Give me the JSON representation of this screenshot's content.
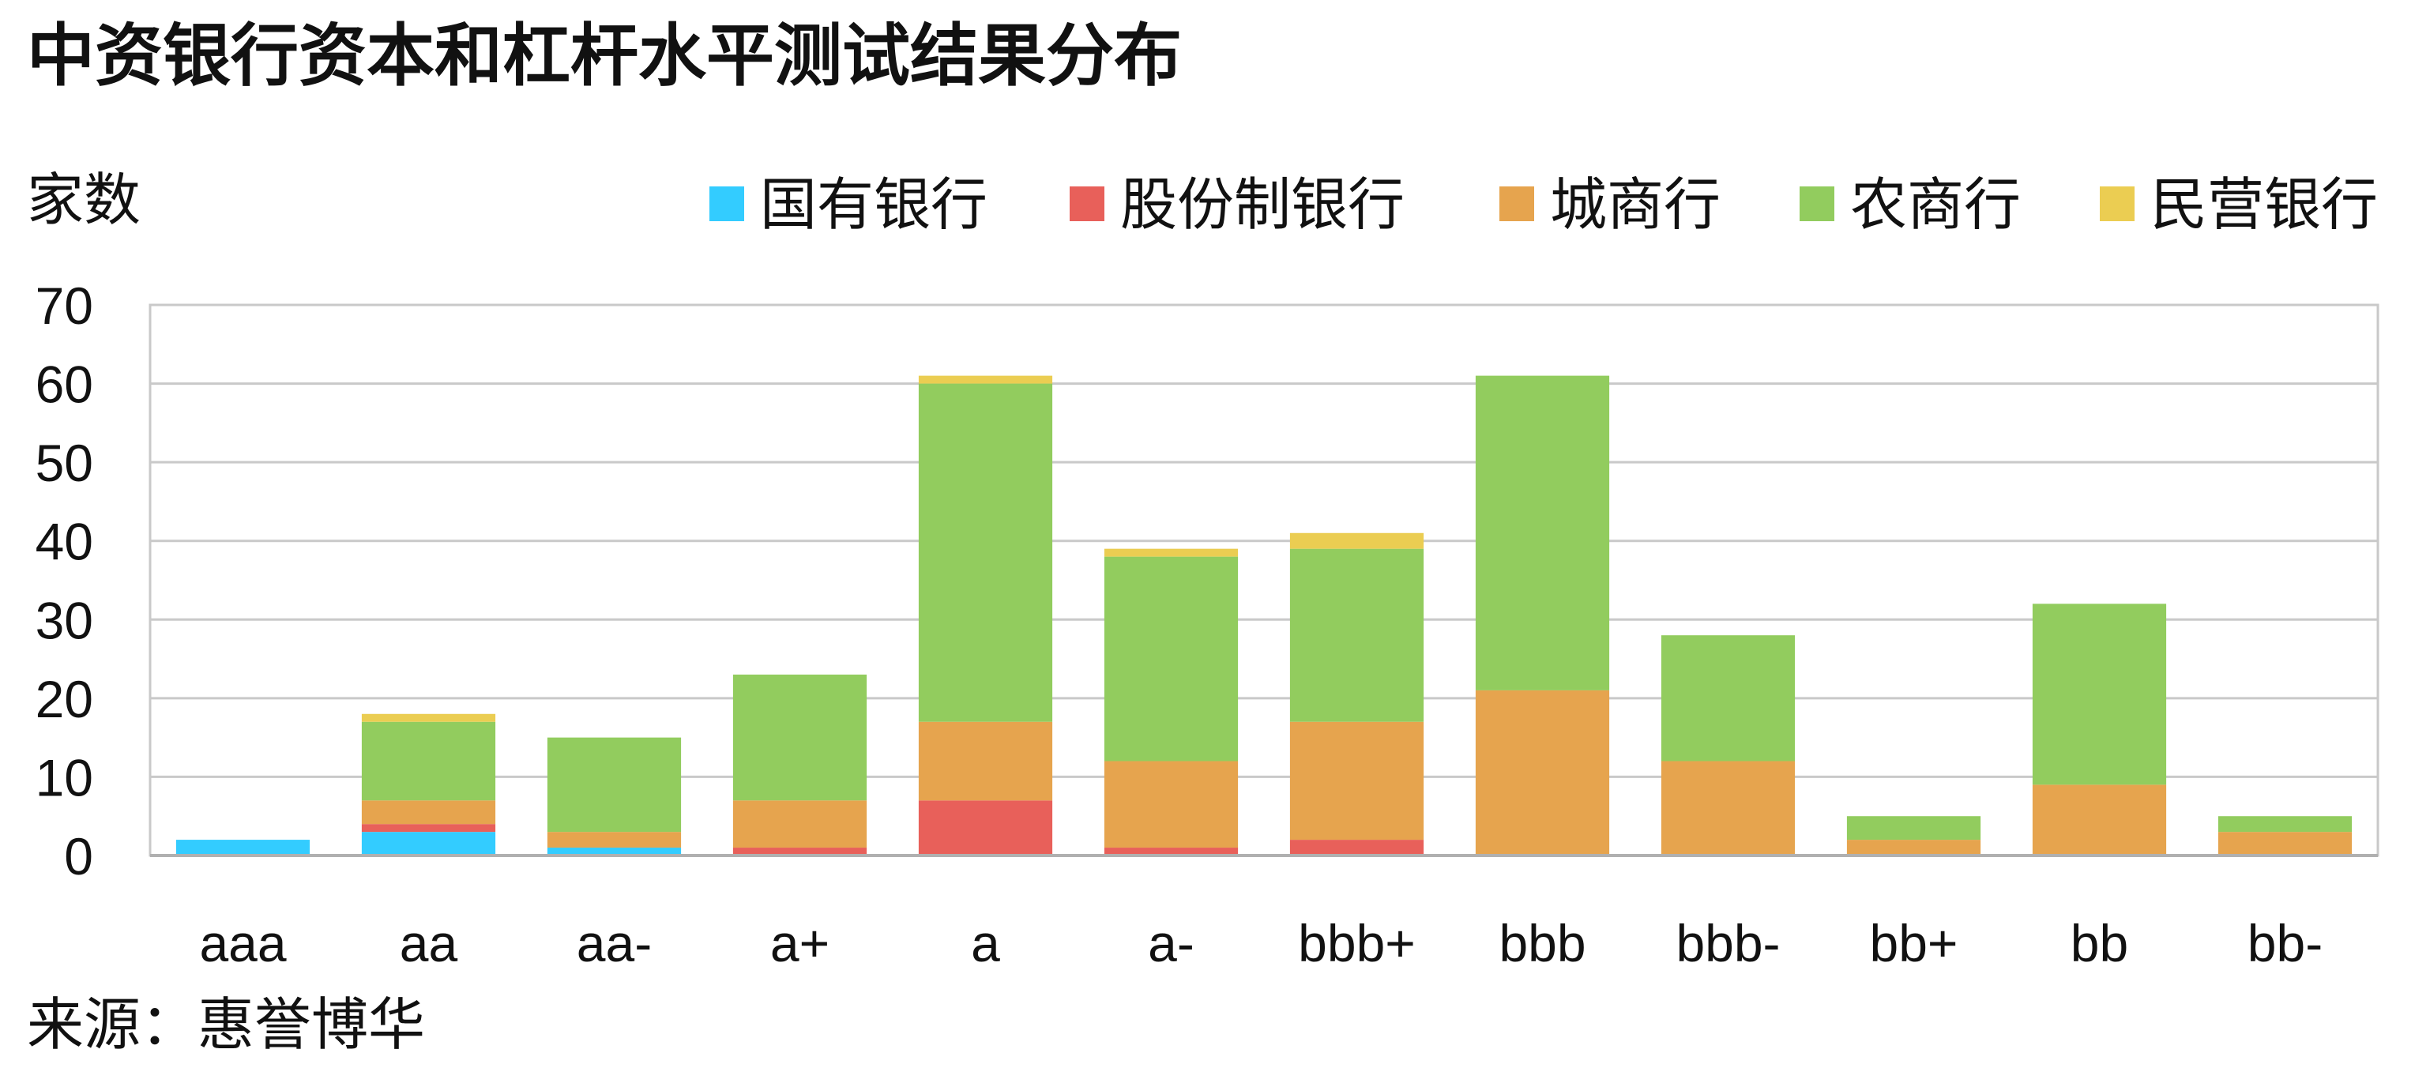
{
  "title": "中资银行资本和杠杆水平测试结果分布",
  "source": "来源：惠誉博华",
  "chart_data": {
    "type": "bar",
    "stacked": true,
    "title": "中资银行资本和杠杆水平测试结果分布",
    "ylabel": "家数",
    "ylim": [
      0,
      70
    ],
    "yticks": [
      0,
      10,
      20,
      30,
      40,
      50,
      60,
      70
    ],
    "grid": true,
    "legend_position": "top",
    "categories": [
      "aaa",
      "aa",
      "aa-",
      "a+",
      "a",
      "a-",
      "bbb+",
      "bbb",
      "bbb-",
      "bb+",
      "bb",
      "bb-"
    ],
    "series": [
      {
        "name": "国有银行",
        "color": "#33ccff",
        "values": [
          2,
          3,
          1,
          0,
          0,
          0,
          0,
          0,
          0,
          0,
          0,
          0
        ]
      },
      {
        "name": "股份制银行",
        "color": "#e8605a",
        "values": [
          0,
          1,
          0,
          1,
          7,
          1,
          2,
          0,
          0,
          0,
          0,
          0
        ]
      },
      {
        "name": "城商行",
        "color": "#e6a44e",
        "values": [
          0,
          3,
          2,
          6,
          10,
          11,
          15,
          21,
          12,
          2,
          9,
          3
        ]
      },
      {
        "name": "农商行",
        "color": "#92cc5e",
        "values": [
          0,
          10,
          12,
          16,
          43,
          26,
          22,
          40,
          16,
          3,
          23,
          2
        ]
      },
      {
        "name": "民营银行",
        "color": "#ebcd52",
        "values": [
          0,
          1,
          0,
          0,
          1,
          1,
          2,
          0,
          0,
          0,
          0,
          0
        ]
      }
    ]
  }
}
